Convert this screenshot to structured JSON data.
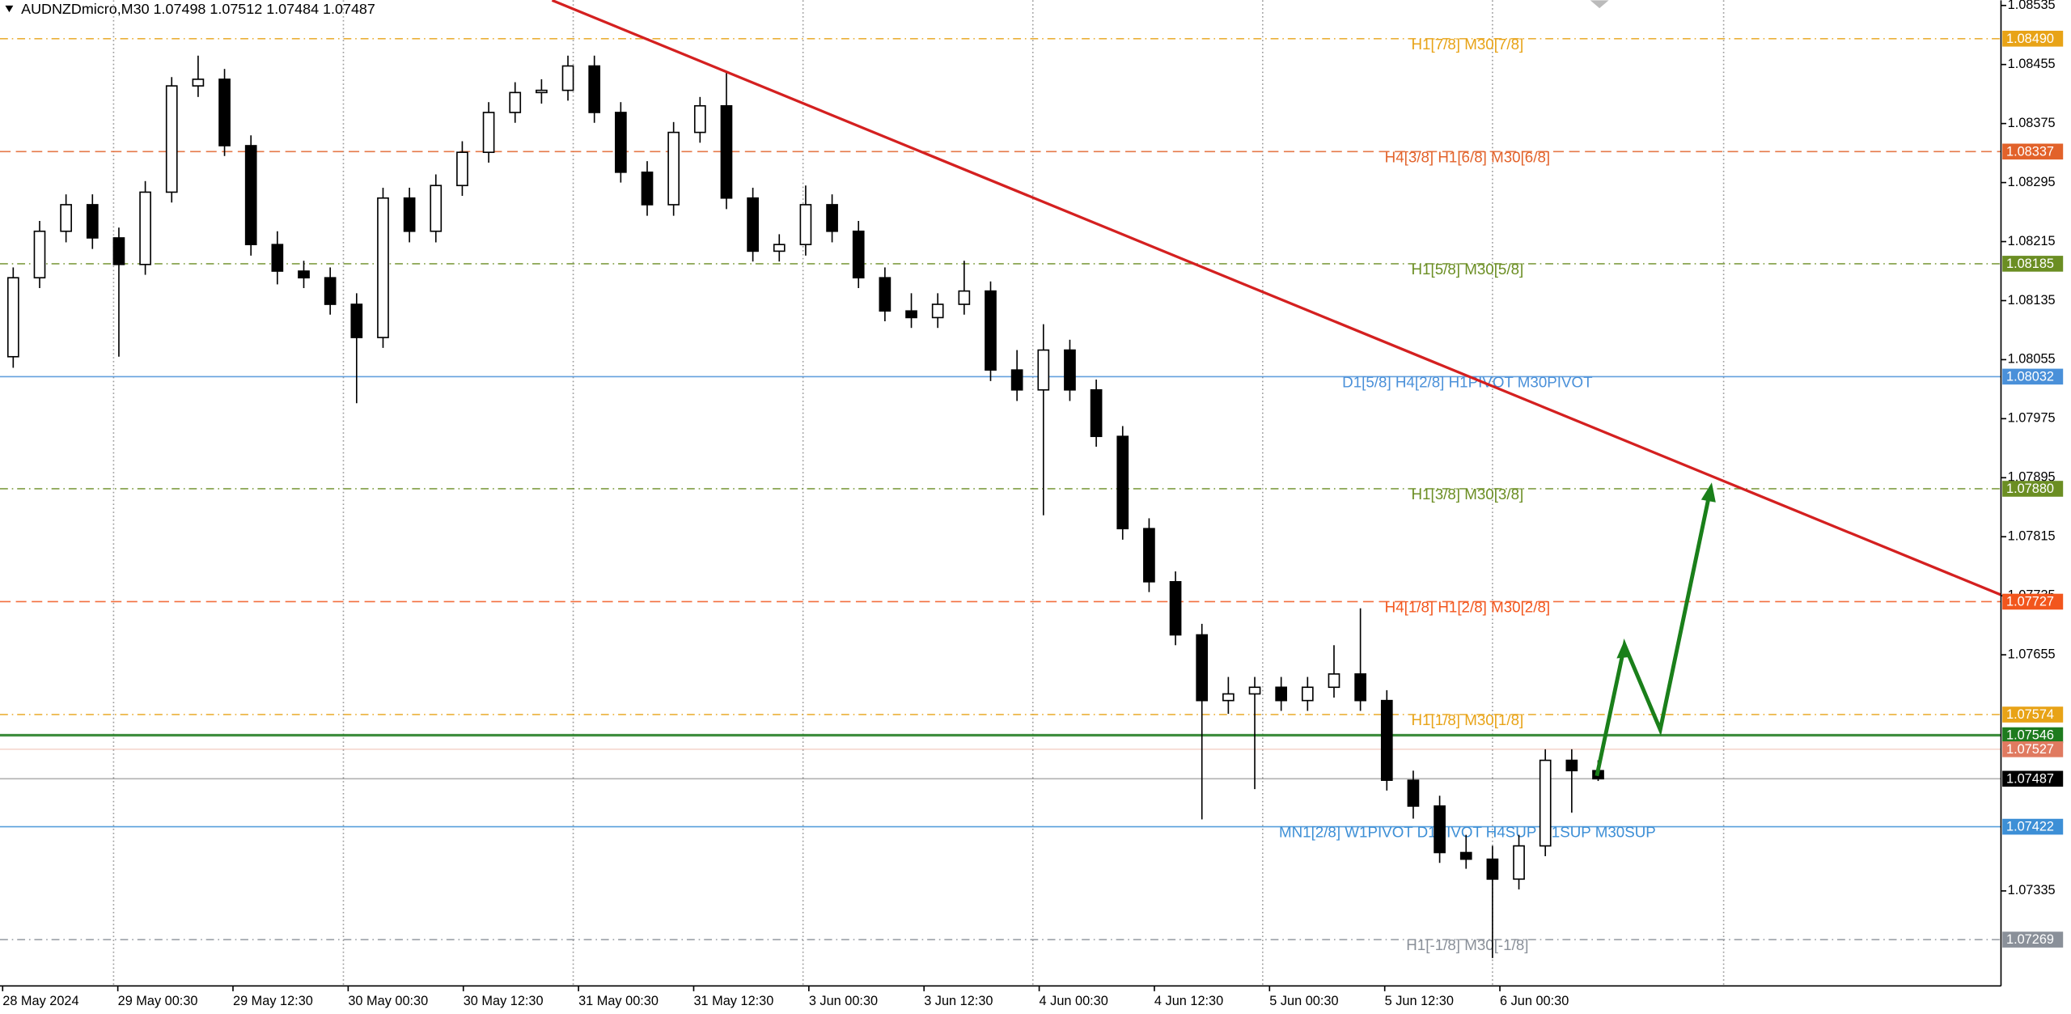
{
  "chart_data": {
    "type": "candlestick",
    "title": "AUDNZDmicro,M30",
    "open": [
      1.08059,
      1.08166,
      1.08229,
      1.08265,
      1.0822,
      1.08184,
      1.08282,
      1.08426,
      1.08435,
      1.08345,
      1.08211,
      1.08175,
      1.08166,
      1.0813,
      1.08085,
      1.08274,
      1.08229,
      1.08291,
      1.08336,
      1.0839,
      1.08417,
      1.0842,
      1.08453,
      1.0839,
      1.08309,
      1.08265,
      1.08363,
      1.08399,
      1.08274,
      1.08202,
      1.08211,
      1.08265,
      1.08229,
      1.08166,
      1.08121,
      1.08112,
      1.0813,
      1.08148,
      1.08041,
      1.08014,
      1.08068,
      1.08014,
      1.07951,
      1.07826,
      1.07754,
      1.07682,
      1.07593,
      1.07602,
      1.07611,
      1.07593,
      1.07611,
      1.07629,
      1.07593,
      1.07485,
      1.0745,
      1.07387,
      1.07378,
      1.07351,
      1.07396,
      1.07512,
      1.07498
    ],
    "high": [
      1.0818,
      1.08243,
      1.08279,
      1.08279,
      1.08234,
      1.08297,
      1.08438,
      1.08467,
      1.08449,
      1.08359,
      1.08229,
      1.08189,
      1.0818,
      1.08145,
      1.08288,
      1.08288,
      1.08306,
      1.08351,
      1.08404,
      1.08431,
      1.08435,
      1.08467,
      1.08467,
      1.08404,
      1.08324,
      1.08377,
      1.08411,
      1.08444,
      1.08288,
      1.08225,
      1.08291,
      1.08279,
      1.08243,
      1.0818,
      1.08145,
      1.08145,
      1.08189,
      1.08161,
      1.08068,
      1.08103,
      1.08082,
      1.08028,
      1.07965,
      1.0784,
      1.07768,
      1.07697,
      1.07625,
      1.07625,
      1.07625,
      1.07625,
      1.07668,
      1.07718,
      1.07607,
      1.07498,
      1.07464,
      1.07411,
      1.07396,
      1.07411,
      1.07527,
      1.07527,
      1.07512
    ],
    "low": [
      1.08044,
      1.08152,
      1.08214,
      1.08205,
      1.08059,
      1.0817,
      1.08268,
      1.08411,
      1.08331,
      1.08196,
      1.08157,
      1.08152,
      1.08116,
      1.07996,
      1.08071,
      1.08214,
      1.08214,
      1.08277,
      1.08322,
      1.08376,
      1.08402,
      1.08406,
      1.08376,
      1.08295,
      1.0825,
      1.0825,
      1.08349,
      1.08259,
      1.08188,
      1.08188,
      1.08196,
      1.08214,
      1.08152,
      1.08107,
      1.08098,
      1.08098,
      1.08116,
      1.08026,
      1.07999,
      1.07844,
      1.07999,
      1.07937,
      1.07811,
      1.0774,
      1.07668,
      1.07432,
      1.07575,
      1.07473,
      1.07579,
      1.07579,
      1.07597,
      1.07579,
      1.07471,
      1.07433,
      1.07373,
      1.07365,
      1.07244,
      1.07337,
      1.07382,
      1.07441,
      1.07484
    ],
    "close": [
      1.08166,
      1.08229,
      1.08265,
      1.0822,
      1.08184,
      1.08282,
      1.08426,
      1.08435,
      1.08345,
      1.08211,
      1.08175,
      1.08166,
      1.0813,
      1.08085,
      1.08274,
      1.08229,
      1.08291,
      1.08336,
      1.0839,
      1.08417,
      1.0842,
      1.08453,
      1.0839,
      1.08309,
      1.08265,
      1.08363,
      1.08399,
      1.08274,
      1.08202,
      1.08211,
      1.08265,
      1.08229,
      1.08166,
      1.08121,
      1.08112,
      1.0813,
      1.08148,
      1.08041,
      1.08014,
      1.08068,
      1.08014,
      1.07951,
      1.07826,
      1.07754,
      1.07682,
      1.07593,
      1.07602,
      1.07611,
      1.07593,
      1.07611,
      1.07629,
      1.07593,
      1.07485,
      1.0745,
      1.07387,
      1.07378,
      1.07351,
      1.07396,
      1.07512,
      1.07498,
      1.07487
    ],
    "x_tick_labels": [
      "28 May 2024",
      "29 May 00:30",
      "29 May 12:30",
      "30 May 00:30",
      "30 May 12:30",
      "31 May 00:30",
      "31 May 12:30",
      "3 Jun 00:30",
      "3 Jun 12:30",
      "4 Jun 00:30",
      "4 Jun 12:30",
      "5 Jun 00:30",
      "5 Jun 12:30",
      "6 Jun 00:30"
    ],
    "ylim": [
      1.07208,
      1.08542
    ],
    "yticks": [
      1.08535,
      1.08455,
      1.08375,
      1.08295,
      1.08215,
      1.08135,
      1.08055,
      1.07975,
      1.07895,
      1.07815,
      1.07735,
      1.07655,
      1.07335
    ],
    "levels": [
      {
        "value": 1.0849,
        "value_label": "1.08490",
        "label": "H1[7/8] M30[7/8]",
        "color": "#e8a317",
        "style": "dashdot"
      },
      {
        "value": 1.08337,
        "label": "H4[3/8] H1[6/8] M30[6/8]",
        "color": "#e2622a",
        "style": "dash"
      },
      {
        "value": 1.08185,
        "label": "H1[5/8] M30[5/8]",
        "color": "#6b8e23",
        "style": "dashdot"
      },
      {
        "value": 1.08032,
        "label": "D1[5/8] H4[2/8] H1PIVOT M30PIVOT",
        "color": "#4a90d9",
        "style": "solid"
      },
      {
        "value": 1.0788,
        "value_label": "1.07880",
        "label": "H1[3/8] M30[3/8]",
        "color": "#6b8e23",
        "style": "dashdot"
      },
      {
        "value": 1.07727,
        "label": "H4[1/8] H1[2/8] M30[2/8]",
        "color": "#f2561d",
        "style": "dash"
      },
      {
        "value": 1.07574,
        "label": "H1[1/8] M30[1/8]",
        "color": "#e8a317",
        "style": "dashdot"
      },
      {
        "value": 1.07546,
        "color": "#1e7b1e",
        "style": "thick"
      },
      {
        "value": 1.07527,
        "color": "#e07a60",
        "style": "faint"
      },
      {
        "value": 1.07487,
        "color": "#000000",
        "style": "faint"
      },
      {
        "value": 1.07422,
        "label": "MN1[2/8] W1PIVOT D1PIVOT H4SUP H1SUP M30SUP",
        "color": "#3d8fd6",
        "style": "solid"
      },
      {
        "value": 1.07269,
        "label": "H1[-1/8] M30[-1/8]",
        "color": "#8a9099",
        "style": "dashdot"
      }
    ]
  }
}
